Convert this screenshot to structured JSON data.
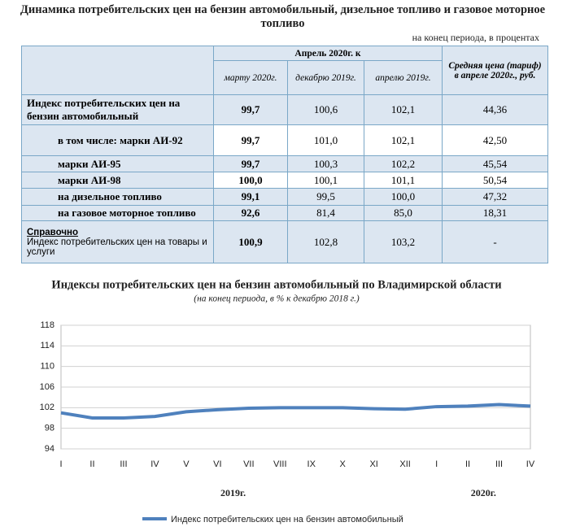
{
  "title": "Динамика потребительских цен на бензин автомобильный, дизельное топливо и газовое моторное топливо",
  "note": "на конец периода, в процентах",
  "table": {
    "header": {
      "group": "Апрель 2020г. к",
      "columns": [
        "марту 2020г.",
        "декабрю 2019г.",
        "апрелю 2019г."
      ],
      "price": "Средняя цена (тариф) в апреле 2020г., руб."
    },
    "rows": [
      {
        "label": "Индекс потребительских цен на бензин автомобильный",
        "values": [
          "99,7",
          "100,6",
          "102,1",
          "44,36"
        ]
      },
      {
        "label": "в том числе: марки АИ-92",
        "values": [
          "99,7",
          "101,0",
          "102,1",
          "42,50"
        ]
      },
      {
        "label": "марки АИ-95",
        "values": [
          "99,7",
          "100,3",
          "102,2",
          "45,54"
        ]
      },
      {
        "label": "марки АИ-98",
        "values": [
          "100,0",
          "100,1",
          "101,1",
          "50,54"
        ]
      },
      {
        "label": "на дизельное топливо",
        "values": [
          "99,1",
          "99,5",
          "100,0",
          "47,32"
        ]
      },
      {
        "label": "на газовое моторное топливо",
        "values": [
          "92,6",
          "81,4",
          "85,0",
          "18,31"
        ]
      },
      {
        "note": "Справочно",
        "label": "Индекс потребительских цен на товары и услуги",
        "values": [
          "100,9",
          "102,8",
          "103,2",
          "-"
        ]
      }
    ]
  },
  "chart_data": {
    "type": "line",
    "title": "Индексы потребительских цен на бензин автомобильный по Владимирской области",
    "subtitle": "(на конец периода, в % к декабрю 2018 г.)",
    "categories": [
      "I",
      "II",
      "III",
      "IV",
      "V",
      "VI",
      "VII",
      "VIII",
      "IX",
      "X",
      "XI",
      "XII",
      "I",
      "II",
      "III",
      "IV"
    ],
    "x_groups": [
      "2019г.",
      "2020г."
    ],
    "series": [
      {
        "name": "Индекс потребительских цен на бензин автомобильный",
        "color": "#4f81bd",
        "values": [
          101.0,
          100.0,
          100.0,
          100.3,
          101.2,
          101.6,
          101.9,
          102.0,
          102.0,
          102.0,
          101.8,
          101.7,
          102.2,
          102.3,
          102.6,
          102.3
        ]
      }
    ],
    "ylim": [
      94,
      118
    ],
    "yticks": [
      94,
      98,
      102,
      106,
      110,
      114,
      118
    ],
    "grid": true
  }
}
